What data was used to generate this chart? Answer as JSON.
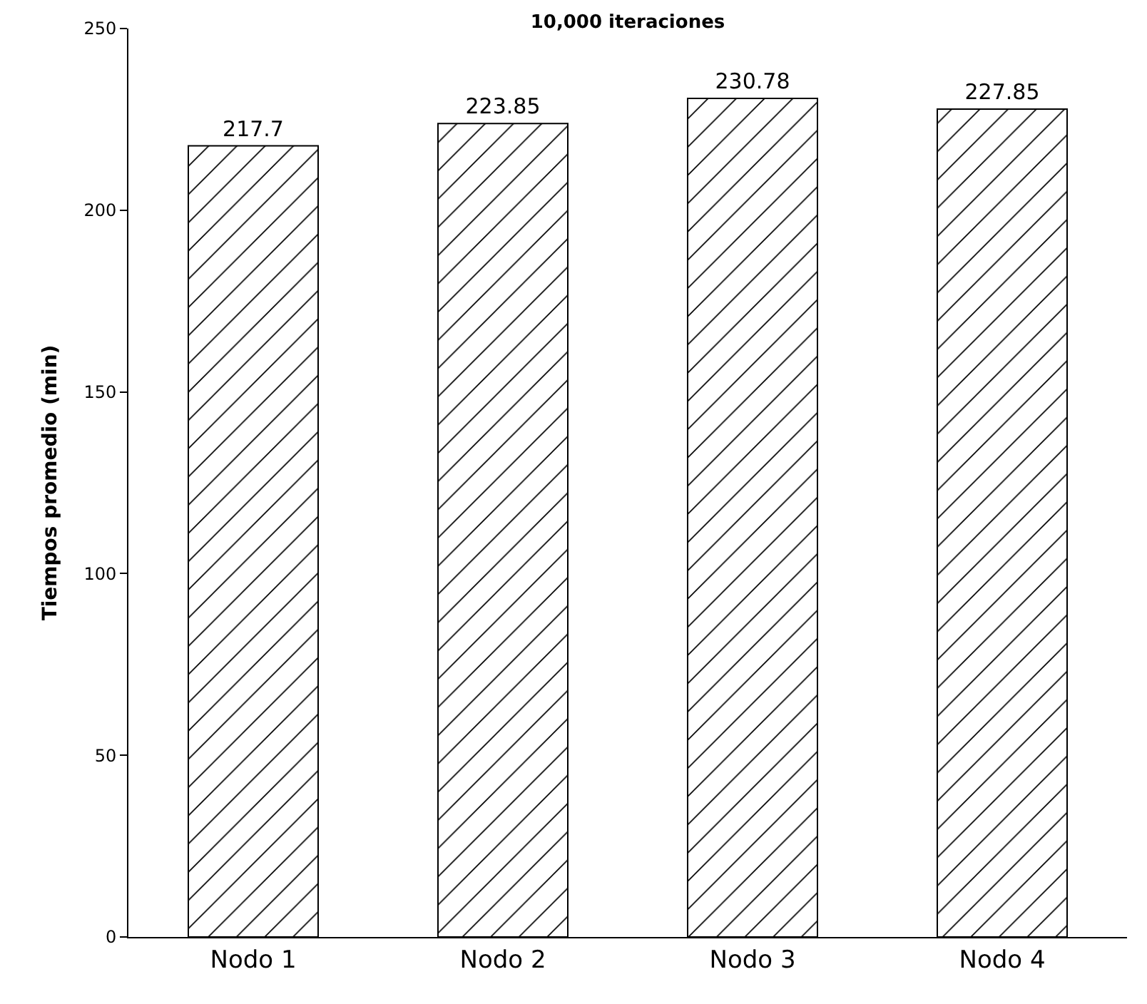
{
  "chart_data": {
    "type": "bar",
    "title": "10,000 iteraciones",
    "ylabel": "Tiempos promedio (min)",
    "categories": [
      "Nodo 1",
      "Nodo 2",
      "Nodo 3",
      "Nodo 4"
    ],
    "values": [
      217.7,
      223.85,
      230.78,
      227.85
    ],
    "color": "#000000",
    "ylim": [
      0,
      250
    ],
    "yticks": [
      0,
      50,
      100,
      150,
      200,
      250
    ],
    "data_labels": true
  }
}
